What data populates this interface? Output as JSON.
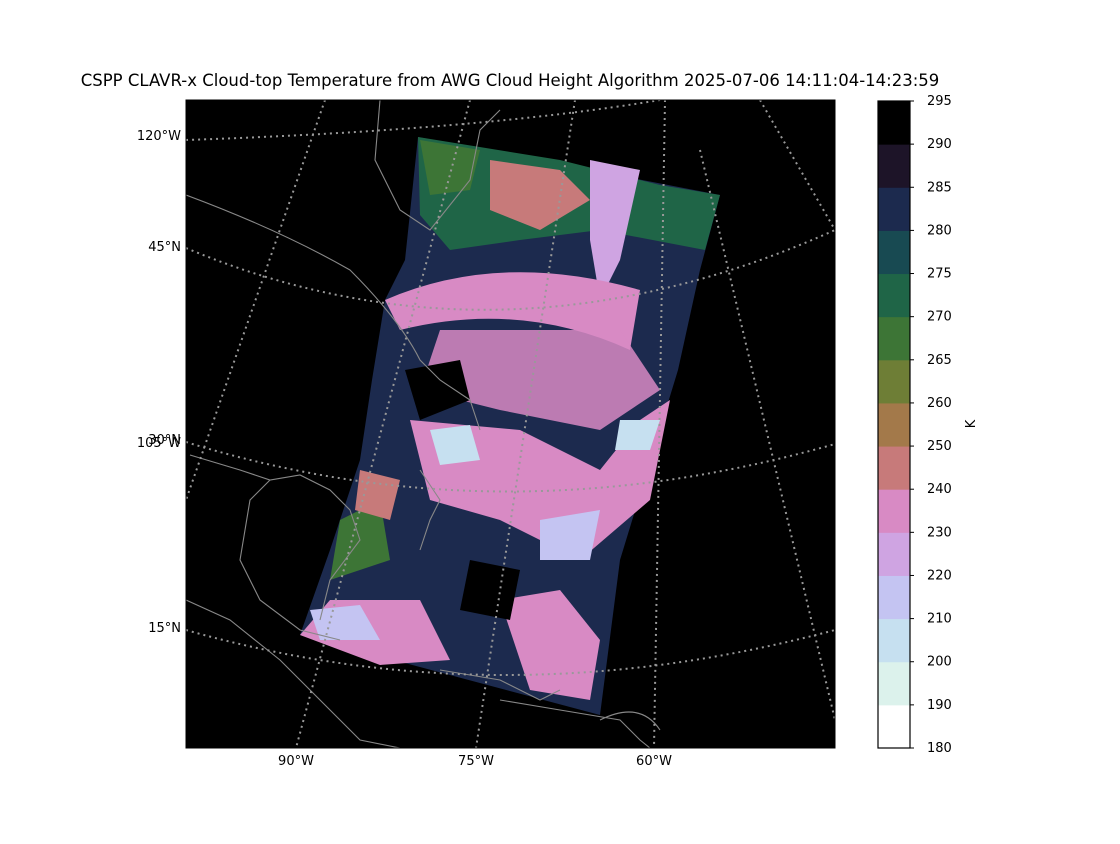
{
  "title": "CSPP CLAVR-x Cloud-top Temperature from AWG Cloud Height Algorithm 2025-07-06 14:11:04-14:23:59",
  "map": {
    "left_labels": [
      "120°W",
      "45°N",
      "105°W",
      "30°N",
      "15°N"
    ],
    "bottom_labels": [
      "90°W",
      "75°W",
      "60°W"
    ]
  },
  "colorbar": {
    "label": "K",
    "bounds": [
      180,
      190,
      200,
      210,
      220,
      230,
      240,
      250,
      260,
      265,
      270,
      275,
      280,
      285,
      290,
      295
    ],
    "colors": [
      "#ffffff",
      "#dcf2ec",
      "#c6e0f0",
      "#c4c4f2",
      "#cfa4e2",
      "#d88ac4",
      "#c77a7a",
      "#a3794a",
      "#6e7e36",
      "#3d7536",
      "#1f6547",
      "#184a52",
      "#1c2a4e",
      "#1d1428",
      "#000000"
    ]
  }
}
